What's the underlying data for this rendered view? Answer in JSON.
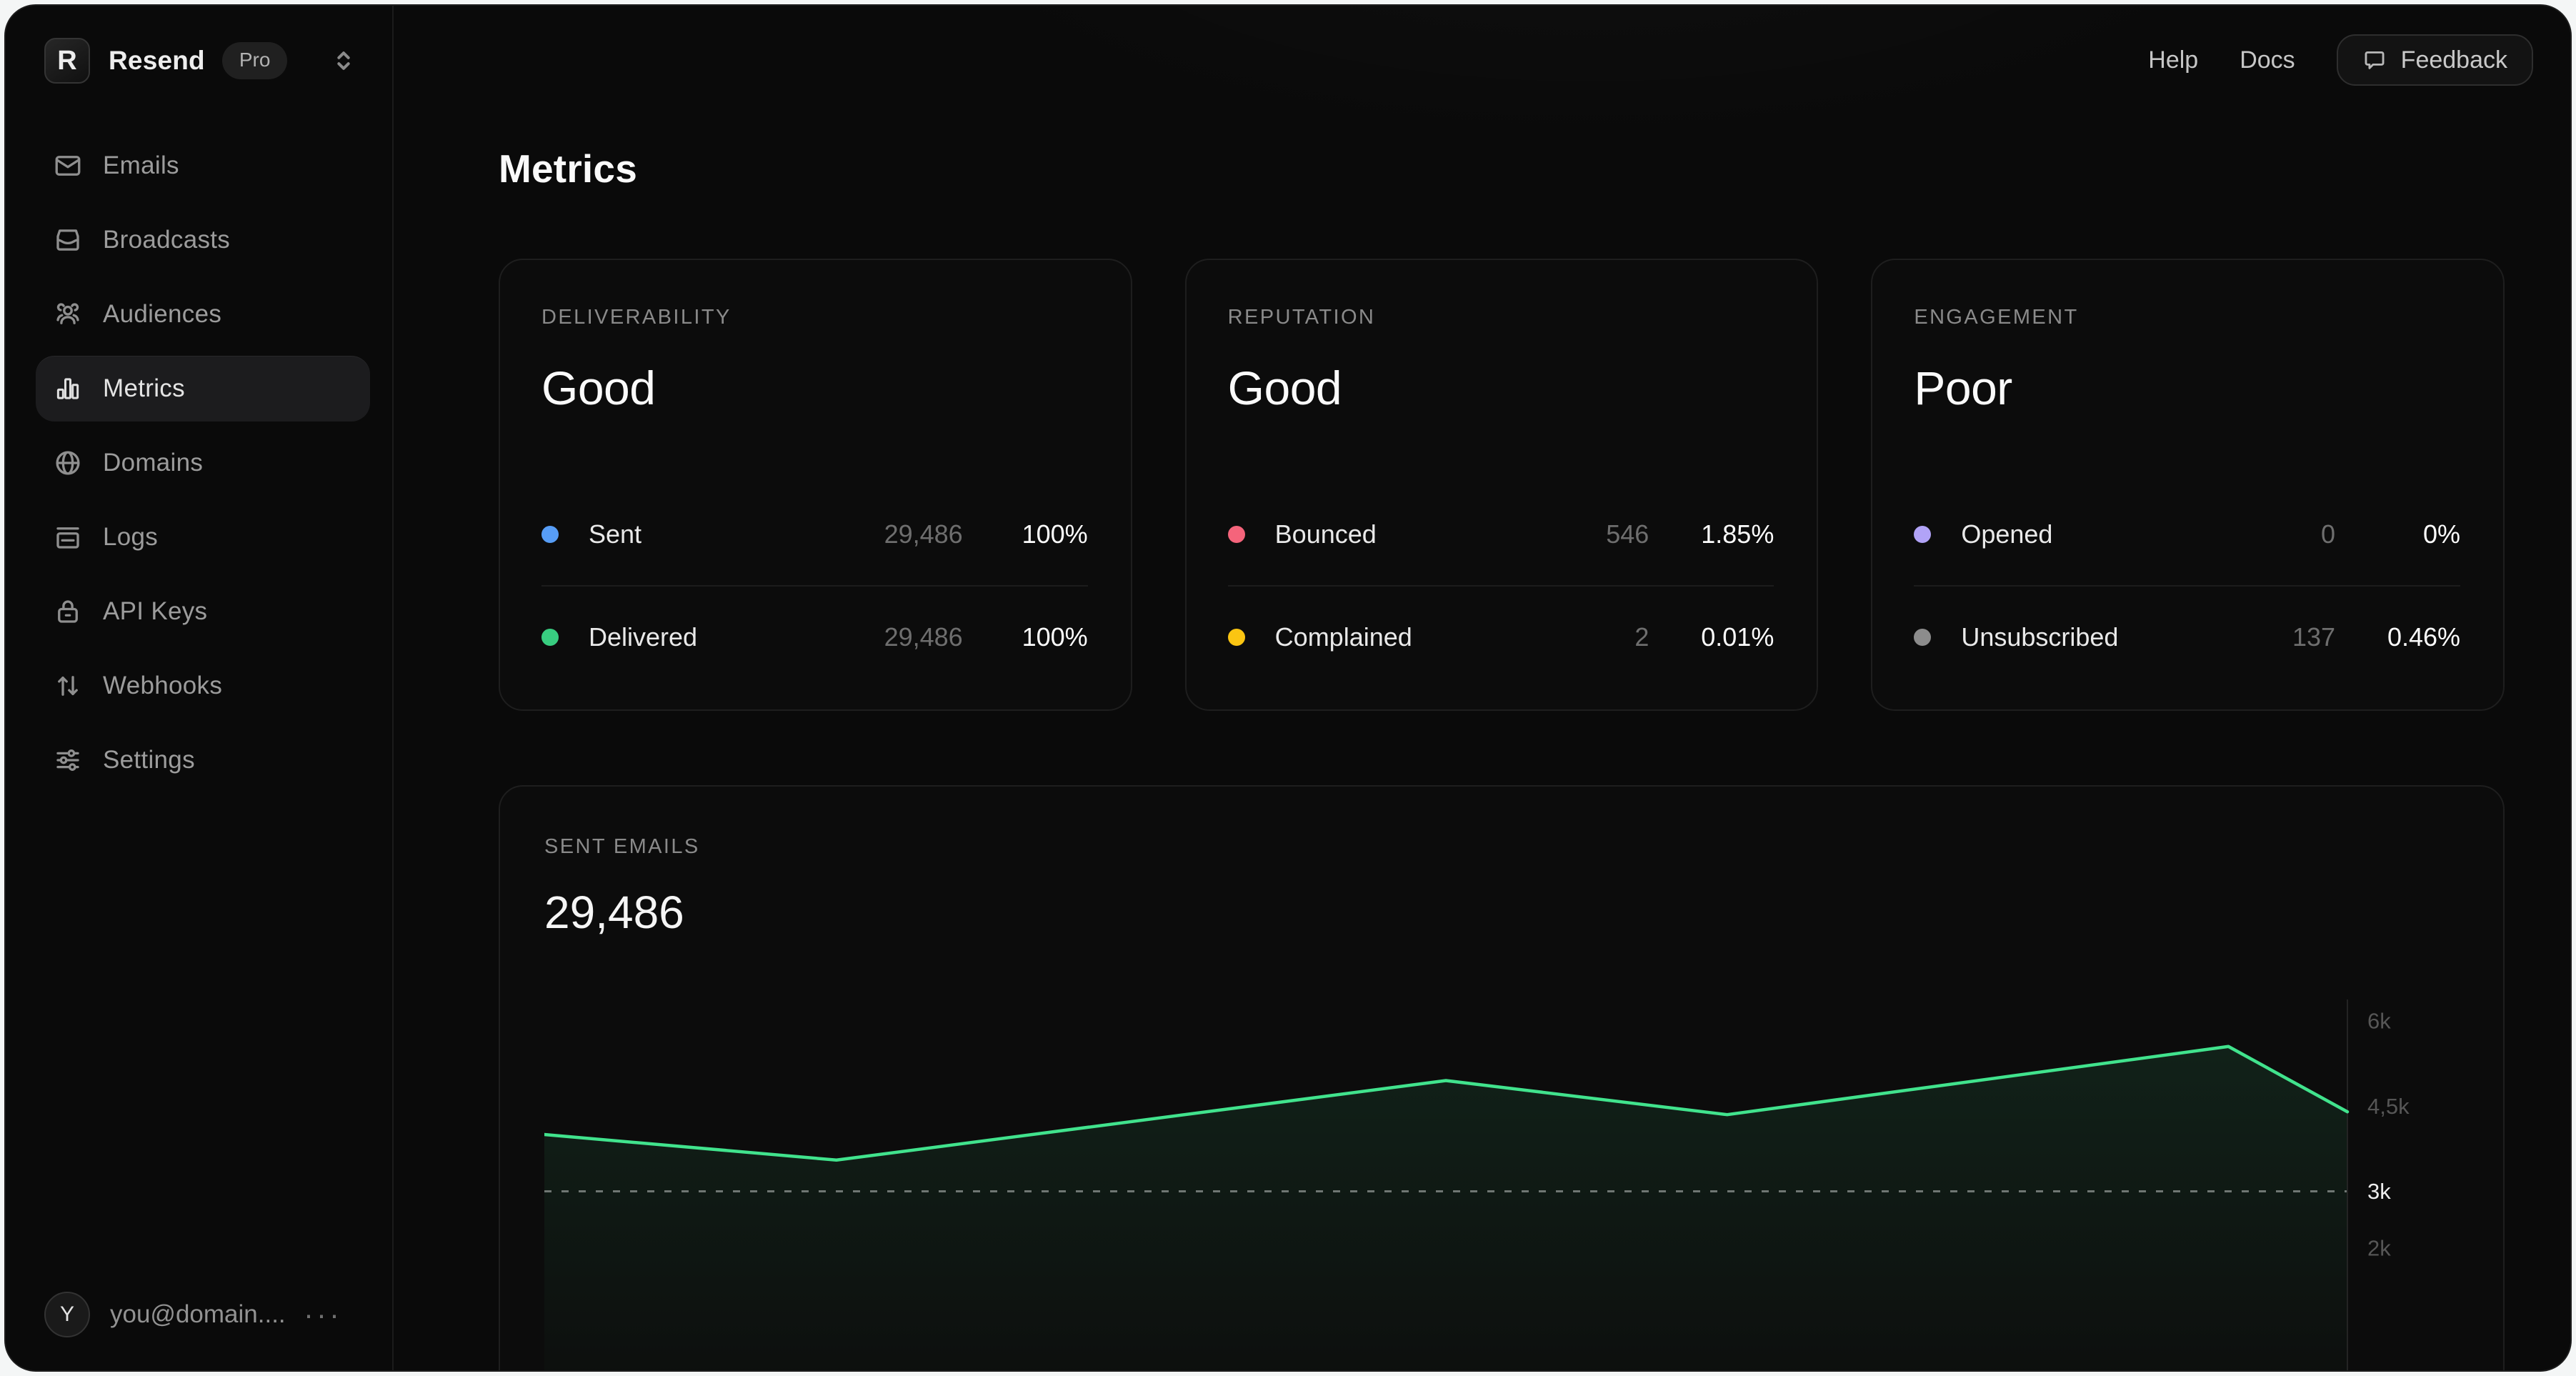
{
  "brand": {
    "logo_letter": "R",
    "name": "Resend",
    "plan": "Pro"
  },
  "sidebar": {
    "items": [
      {
        "label": "Emails",
        "icon": "mail-icon",
        "active": false
      },
      {
        "label": "Broadcasts",
        "icon": "inbox-icon",
        "active": false
      },
      {
        "label": "Audiences",
        "icon": "users-icon",
        "active": false
      },
      {
        "label": "Metrics",
        "icon": "bar-chart-icon",
        "active": true
      },
      {
        "label": "Domains",
        "icon": "globe-icon",
        "active": false
      },
      {
        "label": "Logs",
        "icon": "logs-icon",
        "active": false
      },
      {
        "label": "API Keys",
        "icon": "lock-icon",
        "active": false
      },
      {
        "label": "Webhooks",
        "icon": "arrows-up-down-icon",
        "active": false
      },
      {
        "label": "Settings",
        "icon": "sliders-icon",
        "active": false
      }
    ]
  },
  "user": {
    "avatar_initial": "Y",
    "email": "you@domain....",
    "menu_icon": "ellipsis-icon"
  },
  "topbar": {
    "links": [
      {
        "label": "Help"
      },
      {
        "label": "Docs"
      }
    ],
    "feedback": {
      "label": "Feedback",
      "icon": "chat-bubble-icon"
    }
  },
  "page": {
    "title": "Metrics"
  },
  "summary_cards": [
    {
      "category": "DELIVERABILITY",
      "status": "Good",
      "rows": [
        {
          "label": "Sent",
          "dot_color": "#579DF6",
          "value": "29,486",
          "percent": "100%"
        },
        {
          "label": "Delivered",
          "dot_color": "#38CD80",
          "value": "29,486",
          "percent": "100%"
        }
      ]
    },
    {
      "category": "REPUTATION",
      "status": "Good",
      "rows": [
        {
          "label": "Bounced",
          "dot_color": "#F5647B",
          "value": "546",
          "percent": "1.85%"
        },
        {
          "label": "Complained",
          "dot_color": "#FBC512",
          "value": "2",
          "percent": "0.01%"
        }
      ]
    },
    {
      "category": "ENGAGEMENT",
      "status": "Poor",
      "rows": [
        {
          "label": "Opened",
          "dot_color": "#B1A3F7",
          "value": "0",
          "percent": "0%"
        },
        {
          "label": "Unsubscribed",
          "dot_color": "#8C8C8C",
          "value": "137",
          "percent": "0.46%"
        }
      ]
    }
  ],
  "sent_emails": {
    "label": "SENT EMAILS",
    "total": "29,486"
  },
  "chart_data": {
    "type": "area",
    "title": "Sent emails over time",
    "line_color": "#41E38D",
    "fill_color": "#41E38D",
    "series": [
      {
        "name": "Sent",
        "points": [
          {
            "x": 0,
            "value": 4000
          },
          {
            "x": 0.162,
            "value": 3550
          },
          {
            "x": 0.5,
            "value": 4950
          },
          {
            "x": 0.656,
            "value": 4350
          },
          {
            "x": 0.934,
            "value": 5550
          },
          {
            "x": 1,
            "value": 4400
          }
        ]
      }
    ],
    "y_ticks": [
      {
        "label": "6k",
        "value": 6000,
        "highlight": false
      },
      {
        "label": "4,5k",
        "value": 4500,
        "highlight": false
      },
      {
        "label": "3k",
        "value": 3000,
        "highlight": true
      },
      {
        "label": "2k",
        "value": 2000,
        "highlight": false
      }
    ],
    "threshold": {
      "value": 3000,
      "style": "dashed"
    },
    "ylim": [
      1500,
      6400
    ],
    "grid": "off",
    "legend": "none",
    "x_axis_labels": "not visible"
  }
}
